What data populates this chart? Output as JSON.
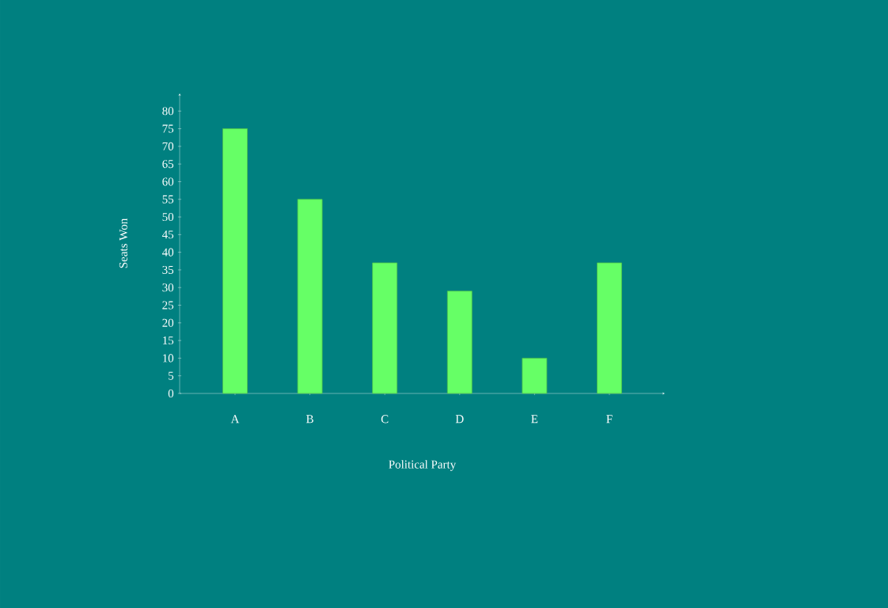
{
  "chart_data": {
    "type": "bar",
    "xlabel": "Political Party",
    "ylabel": "Seats Won",
    "categories": [
      "A",
      "B",
      "C",
      "D",
      "E",
      "F"
    ],
    "values": [
      75,
      55,
      37,
      29,
      10,
      37
    ],
    "color": "#66ff66",
    "ylim": [
      0,
      85
    ],
    "yticks": [
      0,
      5,
      10,
      15,
      20,
      25,
      30,
      35,
      40,
      45,
      50,
      55,
      60,
      65,
      70,
      75,
      80
    ],
    "grid": false
  }
}
